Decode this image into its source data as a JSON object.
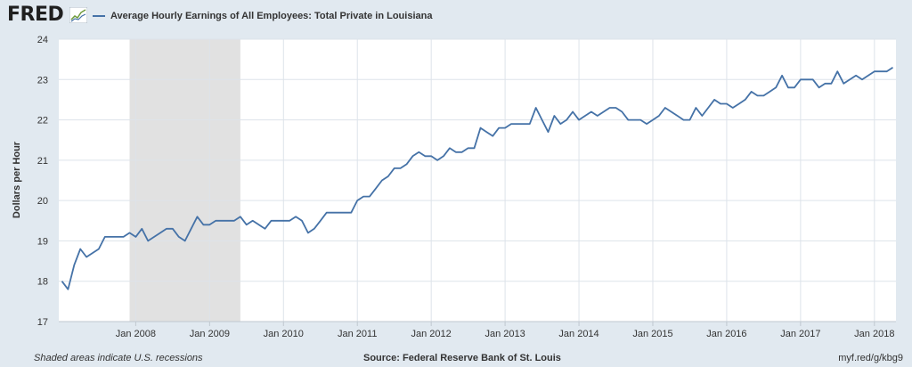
{
  "header": {
    "logo_text": "FRED",
    "logo_icon": "fred-chart-icon",
    "legend_label": "Average Hourly Earnings of All Employees: Total Private in Louisiana",
    "series_color": "#4572a7"
  },
  "footer": {
    "left": "Shaded areas indicate U.S. recessions",
    "center": "Source: Federal Reserve Bank of St. Louis",
    "right": "myf.red/g/kbg9"
  },
  "chart_data": {
    "type": "line",
    "title": "",
    "ylabel": "Dollars per Hour",
    "xlabel": "",
    "ylim": [
      17,
      24
    ],
    "yticks": [
      17,
      18,
      19,
      20,
      21,
      22,
      23,
      24
    ],
    "x_start": "2007-01",
    "x_end": "2018-04",
    "xticks": [
      {
        "label": "Jan 2008",
        "date": "2008-01"
      },
      {
        "label": "Jan 2009",
        "date": "2009-01"
      },
      {
        "label": "Jan 2010",
        "date": "2010-01"
      },
      {
        "label": "Jan 2011",
        "date": "2011-01"
      },
      {
        "label": "Jan 2012",
        "date": "2012-01"
      },
      {
        "label": "Jan 2013",
        "date": "2013-01"
      },
      {
        "label": "Jan 2014",
        "date": "2014-01"
      },
      {
        "label": "Jan 2015",
        "date": "2015-01"
      },
      {
        "label": "Jan 2016",
        "date": "2016-01"
      },
      {
        "label": "Jan 2017",
        "date": "2017-01"
      },
      {
        "label": "Jan 2018",
        "date": "2018-01"
      }
    ],
    "recessions": [
      {
        "start": "2007-12",
        "end": "2009-06"
      }
    ],
    "grid": true,
    "series": [
      {
        "color": "#4572a7",
        "x": [
          "2007-01",
          "2007-02",
          "2007-03",
          "2007-04",
          "2007-05",
          "2007-06",
          "2007-07",
          "2007-08",
          "2007-09",
          "2007-10",
          "2007-11",
          "2007-12",
          "2008-01",
          "2008-02",
          "2008-03",
          "2008-04",
          "2008-05",
          "2008-06",
          "2008-07",
          "2008-08",
          "2008-09",
          "2008-10",
          "2008-11",
          "2008-12",
          "2009-01",
          "2009-02",
          "2009-03",
          "2009-04",
          "2009-05",
          "2009-06",
          "2009-07",
          "2009-08",
          "2009-09",
          "2009-10",
          "2009-11",
          "2009-12",
          "2010-01",
          "2010-02",
          "2010-03",
          "2010-04",
          "2010-05",
          "2010-06",
          "2010-07",
          "2010-08",
          "2010-09",
          "2010-10",
          "2010-11",
          "2010-12",
          "2011-01",
          "2011-02",
          "2011-03",
          "2011-04",
          "2011-05",
          "2011-06",
          "2011-07",
          "2011-08",
          "2011-09",
          "2011-10",
          "2011-11",
          "2011-12",
          "2012-01",
          "2012-02",
          "2012-03",
          "2012-04",
          "2012-05",
          "2012-06",
          "2012-07",
          "2012-08",
          "2012-09",
          "2012-10",
          "2012-11",
          "2012-12",
          "2013-01",
          "2013-02",
          "2013-03",
          "2013-04",
          "2013-05",
          "2013-06",
          "2013-07",
          "2013-08",
          "2013-09",
          "2013-10",
          "2013-11",
          "2013-12",
          "2014-01",
          "2014-02",
          "2014-03",
          "2014-04",
          "2014-05",
          "2014-06",
          "2014-07",
          "2014-08",
          "2014-09",
          "2014-10",
          "2014-11",
          "2014-12",
          "2015-01",
          "2015-02",
          "2015-03",
          "2015-04",
          "2015-05",
          "2015-06",
          "2015-07",
          "2015-08",
          "2015-09",
          "2015-10",
          "2015-11",
          "2015-12",
          "2016-01",
          "2016-02",
          "2016-03",
          "2016-04",
          "2016-05",
          "2016-06",
          "2016-07",
          "2016-08",
          "2016-09",
          "2016-10",
          "2016-11",
          "2016-12",
          "2017-01",
          "2017-02",
          "2017-03",
          "2017-04",
          "2017-05",
          "2017-06",
          "2017-07",
          "2017-08",
          "2017-09",
          "2017-10",
          "2017-11",
          "2017-12",
          "2018-01",
          "2018-02",
          "2018-03",
          "2018-04"
        ],
        "values": [
          18.0,
          17.8,
          18.4,
          18.8,
          18.6,
          18.7,
          18.8,
          19.1,
          19.1,
          19.1,
          19.1,
          19.2,
          19.1,
          19.3,
          19.0,
          19.1,
          19.2,
          19.3,
          19.3,
          19.1,
          19.0,
          19.3,
          19.6,
          19.4,
          19.4,
          19.5,
          19.5,
          19.5,
          19.5,
          19.6,
          19.4,
          19.5,
          19.4,
          19.3,
          19.5,
          19.5,
          19.5,
          19.5,
          19.6,
          19.5,
          19.2,
          19.3,
          19.5,
          19.7,
          19.7,
          19.7,
          19.7,
          19.7,
          20.0,
          20.1,
          20.1,
          20.3,
          20.5,
          20.6,
          20.8,
          20.8,
          20.9,
          21.1,
          21.2,
          21.1,
          21.1,
          21.0,
          21.1,
          21.3,
          21.2,
          21.2,
          21.3,
          21.3,
          21.8,
          21.7,
          21.6,
          21.8,
          21.8,
          21.9,
          21.9,
          21.9,
          21.9,
          22.3,
          22.0,
          21.7,
          22.1,
          21.9,
          22.0,
          22.2,
          22.0,
          22.1,
          22.2,
          22.1,
          22.2,
          22.3,
          22.3,
          22.2,
          22.0,
          22.0,
          22.0,
          21.9,
          22.0,
          22.1,
          22.3,
          22.2,
          22.1,
          22.0,
          22.0,
          22.3,
          22.1,
          22.3,
          22.5,
          22.4,
          22.4,
          22.3,
          22.4,
          22.5,
          22.7,
          22.6,
          22.6,
          22.7,
          22.8,
          23.1,
          22.8,
          22.8,
          23.0,
          23.0,
          23.0,
          22.8,
          22.9,
          22.9,
          23.2,
          22.9,
          23.0,
          23.1,
          23.0,
          23.1,
          23.2,
          23.2,
          23.2,
          23.3
        ]
      }
    ]
  }
}
